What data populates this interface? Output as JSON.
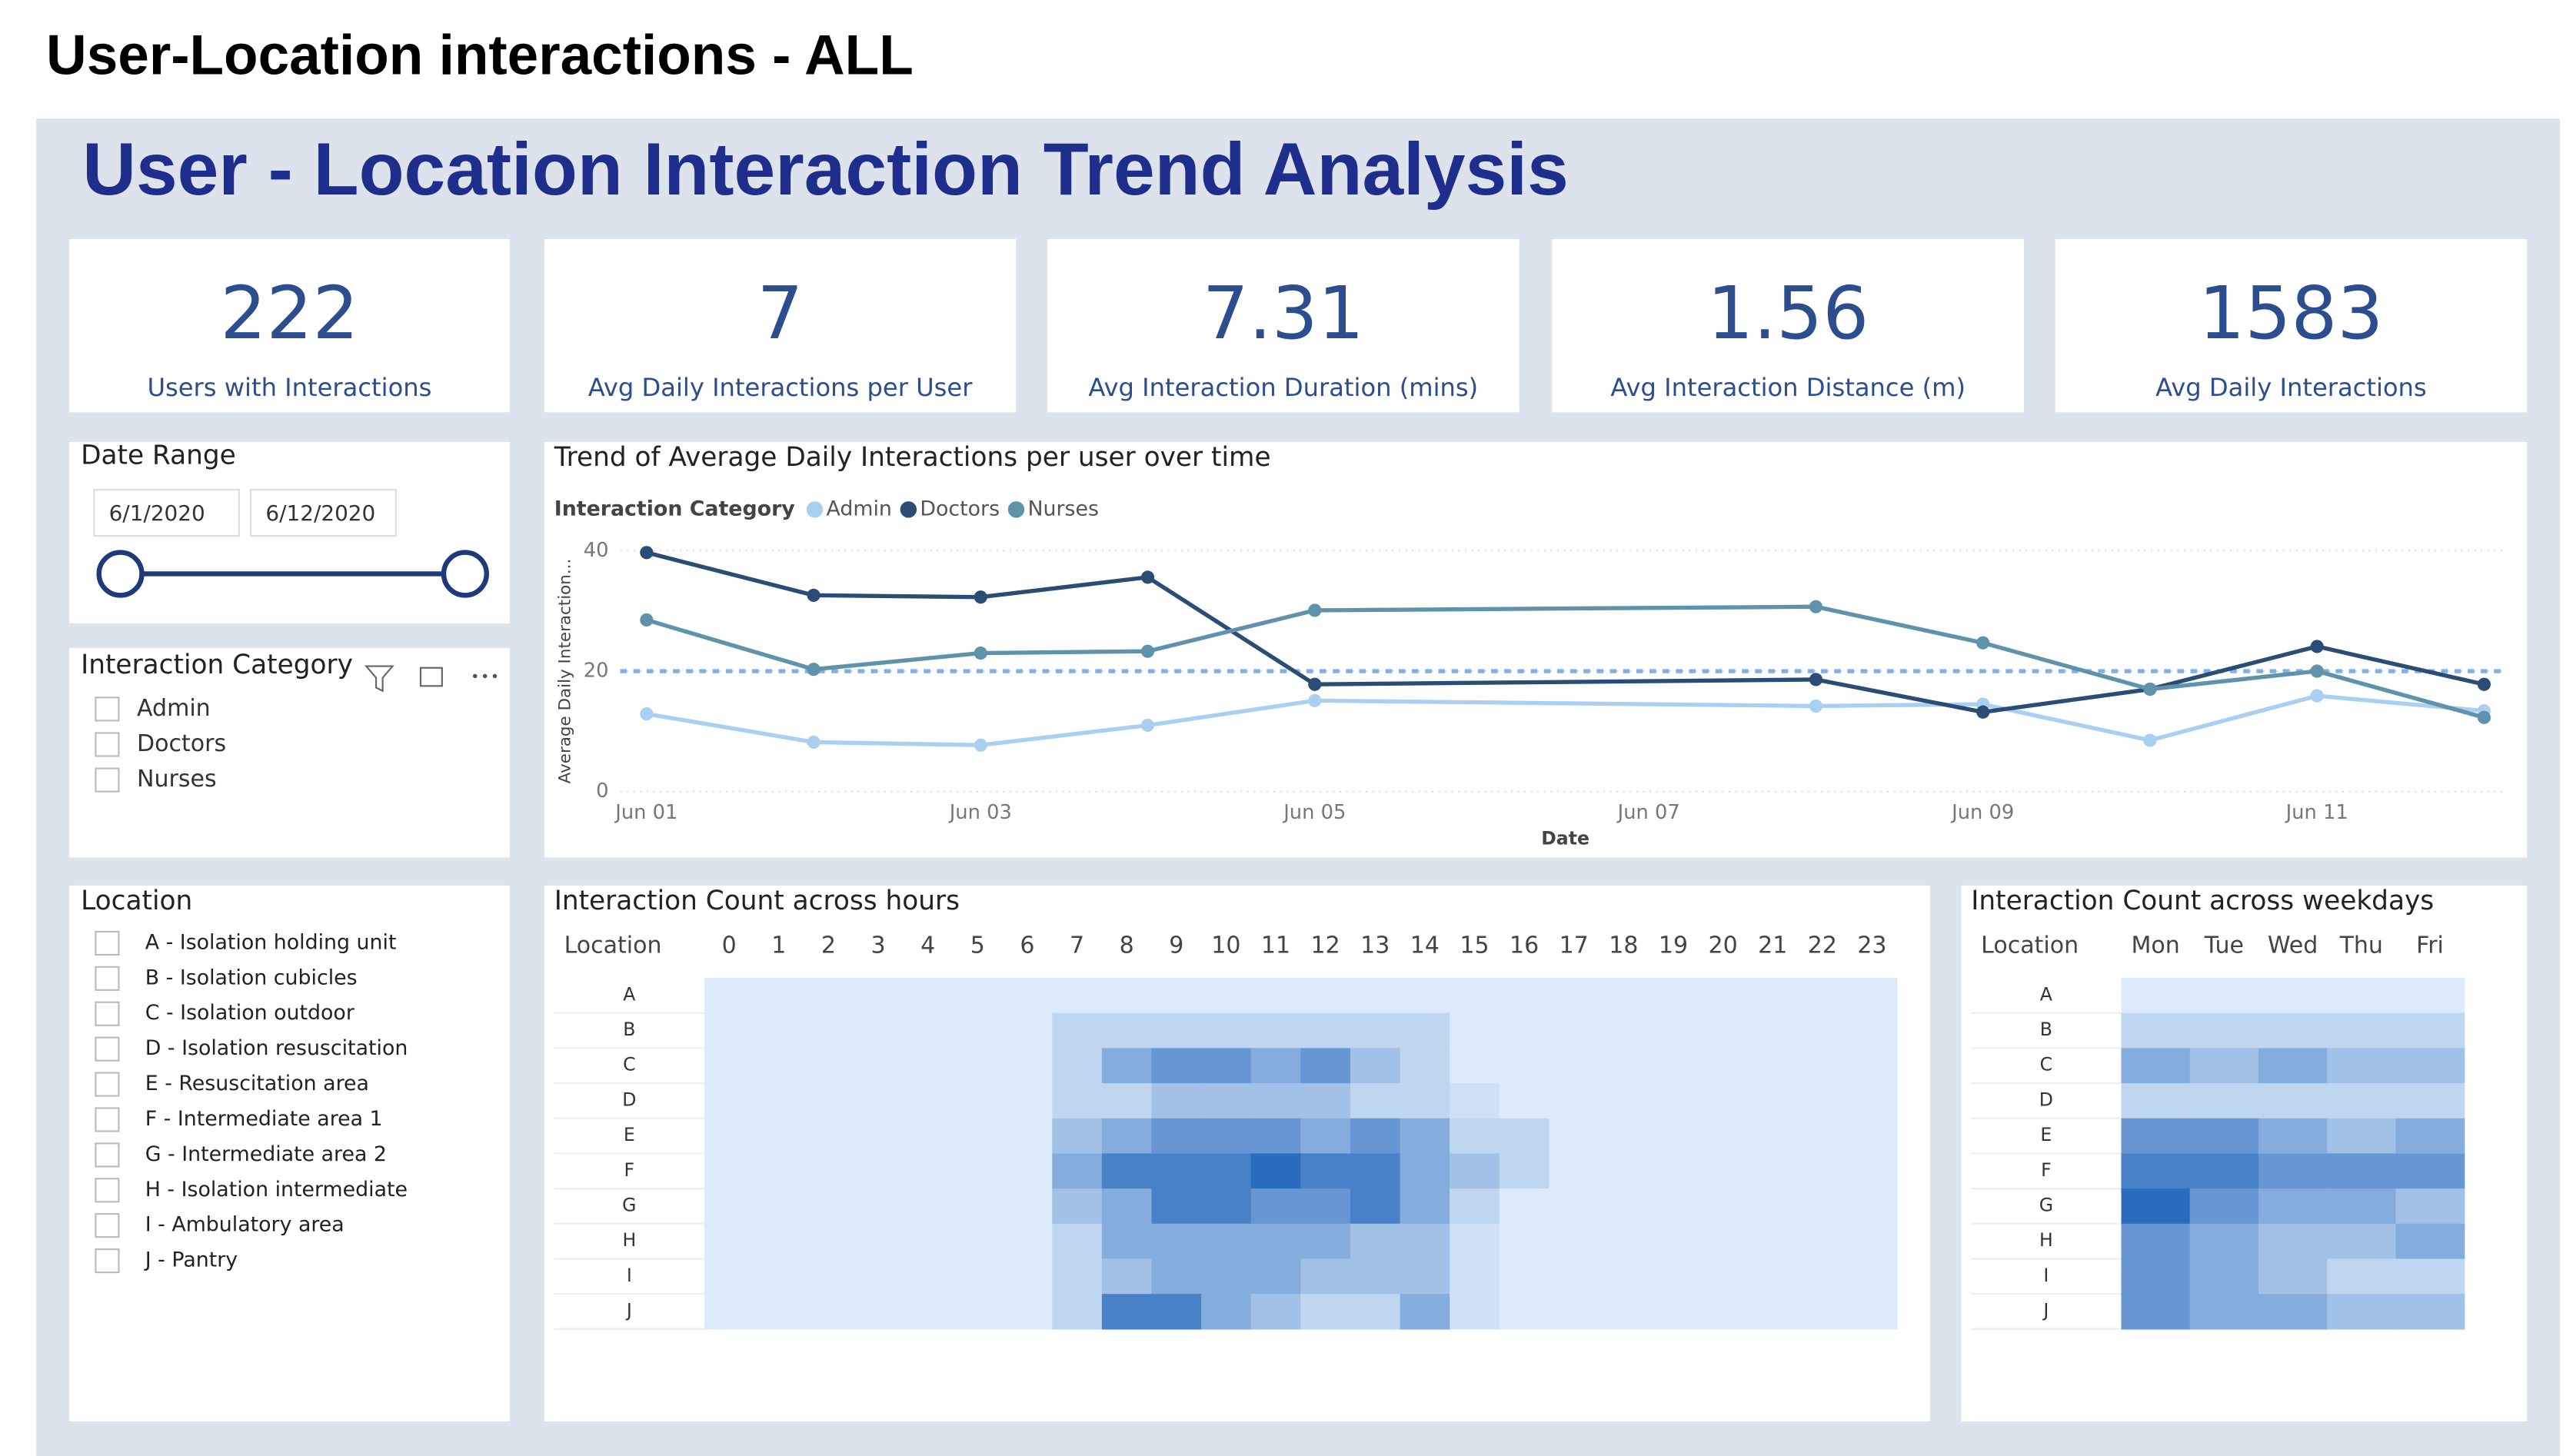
{
  "page_title": "User-Location interactions - ALL",
  "dashboard_title": "User - Location Interaction Trend Analysis",
  "kpis": [
    {
      "value": 222,
      "label": "Users with Interactions"
    },
    {
      "value": 7,
      "label": "Avg Daily Interactions per User"
    },
    {
      "value": 7.31,
      "label": "Avg Interaction Duration (mins)"
    },
    {
      "value": 1.56,
      "label": "Avg Interaction Distance (m)"
    },
    {
      "value": 1583,
      "label": "Avg Daily Interactions"
    }
  ],
  "date_range": {
    "title": "Date Range",
    "start": "6/1/2020",
    "end": "6/12/2020"
  },
  "category_filter": {
    "title": "Interaction Category",
    "options": [
      "Admin",
      "Doctors",
      "Nurses"
    ]
  },
  "location_filter": {
    "title": "Location",
    "options": [
      "A - Isolation holding unit",
      "B - Isolation cubicles",
      "C - Isolation outdoor",
      "D - Isolation resuscitation",
      "E - Resuscitation area",
      "F - Intermediate area 1",
      "G - Intermediate area 2",
      "H - Isolation intermediate",
      "I - Ambulatory area",
      "J - Pantry"
    ]
  },
  "chart_data": [
    {
      "type": "line",
      "title": "Trend of Average Daily Interactions per user over time",
      "legend_title": "Interaction Category",
      "x_label": "Date",
      "y_label": "Average Daily Interaction...",
      "x": [
        "Jun 01",
        "Jun 02",
        "Jun 03",
        "Jun 04",
        "Jun 05",
        "Jun 08",
        "Jun 09",
        "Jun 10",
        "Jun 11",
        "Jun 12"
      ],
      "xlim": [
        "Jun 01",
        "Jun 12"
      ],
      "xticks": [
        "Jun 01",
        "Jun 03",
        "Jun 05",
        "Jun 07",
        "Jun 09",
        "Jun 11"
      ],
      "ylim": [
        0,
        40
      ],
      "yticks": [
        0,
        20,
        40
      ],
      "grid": true,
      "reference_line": 20,
      "series": [
        {
          "name": "Admin",
          "color": "#a9cff2",
          "values": [
            12.9,
            8.2,
            7.7,
            11,
            15.1,
            14.2,
            14.5,
            8.5,
            15.9,
            13.4
          ]
        },
        {
          "name": "Doctors",
          "color": "#2b4c74",
          "values": [
            39.7,
            32.6,
            32.3,
            35.6,
            17.8,
            18.6,
            13.2,
            17,
            24.1,
            17.8
          ]
        },
        {
          "name": "Nurses",
          "color": "#5e93ab",
          "values": [
            28.5,
            20.3,
            23,
            23.3,
            30.1,
            30.7,
            24.7,
            17,
            20,
            12.3
          ]
        }
      ]
    },
    {
      "type": "heatmap",
      "title": "Interaction Count across hours",
      "row_header": "Location",
      "columns": [
        0,
        1,
        2,
        3,
        4,
        5,
        6,
        7,
        8,
        9,
        10,
        11,
        12,
        13,
        14,
        15,
        16,
        17,
        18,
        19,
        20,
        21,
        22,
        23
      ],
      "rows": [
        "A",
        "B",
        "C",
        "D",
        "E",
        "F",
        "G",
        "H",
        "I",
        "J"
      ],
      "color_low": "#dcebfb",
      "color_high": "#2b6cbf",
      "values": [
        [
          0,
          0,
          0,
          0,
          0,
          0,
          0,
          0,
          0,
          0,
          0,
          0,
          0,
          0,
          0,
          0,
          0,
          0,
          0,
          0,
          0,
          0,
          0,
          0
        ],
        [
          0,
          0,
          0,
          0,
          0,
          0,
          0,
          1,
          1,
          1,
          1,
          1,
          1,
          1,
          1,
          0,
          0,
          0,
          0,
          0,
          0,
          0,
          0,
          0
        ],
        [
          0,
          0,
          0,
          0,
          0,
          0,
          0,
          1,
          3,
          4,
          4,
          3,
          4,
          2,
          1,
          0,
          0,
          0,
          0,
          0,
          0,
          0,
          0,
          0
        ],
        [
          0,
          0,
          0,
          0,
          0,
          0,
          0,
          1,
          1,
          2,
          2,
          2,
          2,
          1,
          1,
          0.5,
          0,
          0,
          0,
          0,
          0,
          0,
          0,
          0
        ],
        [
          0,
          0,
          0,
          0,
          0,
          0,
          0,
          2,
          3,
          4,
          4,
          4,
          3,
          4,
          3,
          1,
          1,
          0,
          0,
          0,
          0,
          0,
          0,
          0
        ],
        [
          0,
          0,
          0,
          0,
          0,
          0,
          0,
          3,
          5,
          5,
          5,
          6,
          5,
          5,
          3,
          2,
          1,
          0,
          0,
          0,
          0,
          0,
          0,
          0
        ],
        [
          0,
          0,
          0,
          0,
          0,
          0,
          0,
          2,
          3,
          5,
          5,
          4,
          4,
          5,
          3,
          1,
          0,
          0,
          0,
          0,
          0,
          0,
          0,
          0
        ],
        [
          0,
          0,
          0,
          0,
          0,
          0,
          0,
          1,
          3,
          3,
          3,
          3,
          3,
          2,
          2,
          0.5,
          0,
          0,
          0,
          0,
          0,
          0,
          0,
          0
        ],
        [
          0,
          0,
          0,
          0,
          0,
          0,
          0,
          1,
          2,
          3,
          3,
          3,
          2,
          2,
          2,
          0.5,
          0,
          0,
          0,
          0,
          0,
          0,
          0,
          0
        ],
        [
          0,
          0,
          0,
          0,
          0,
          0,
          0,
          1,
          5,
          5,
          3,
          2,
          1,
          1,
          3,
          0.5,
          0,
          0,
          0,
          0,
          0,
          0,
          0,
          0
        ]
      ]
    },
    {
      "type": "heatmap",
      "title": "Interaction Count across weekdays",
      "row_header": "Location",
      "columns": [
        "Mon",
        "Tue",
        "Wed",
        "Thu",
        "Fri"
      ],
      "rows": [
        "A",
        "B",
        "C",
        "D",
        "E",
        "F",
        "G",
        "H",
        "I",
        "J"
      ],
      "color_low": "#dcebfb",
      "color_high": "#2b6cbf",
      "values": [
        [
          0,
          0,
          0,
          0,
          0
        ],
        [
          1,
          1,
          1,
          1,
          1
        ],
        [
          3,
          2,
          3,
          2,
          2
        ],
        [
          1,
          1,
          1,
          1,
          1
        ],
        [
          4,
          4,
          3,
          2,
          3
        ],
        [
          5,
          5,
          4,
          4,
          4
        ],
        [
          6,
          4,
          3,
          3,
          2
        ],
        [
          4,
          3,
          2,
          2,
          3
        ],
        [
          4,
          3,
          2,
          1,
          1
        ],
        [
          4,
          3,
          3,
          2,
          2
        ]
      ]
    }
  ]
}
